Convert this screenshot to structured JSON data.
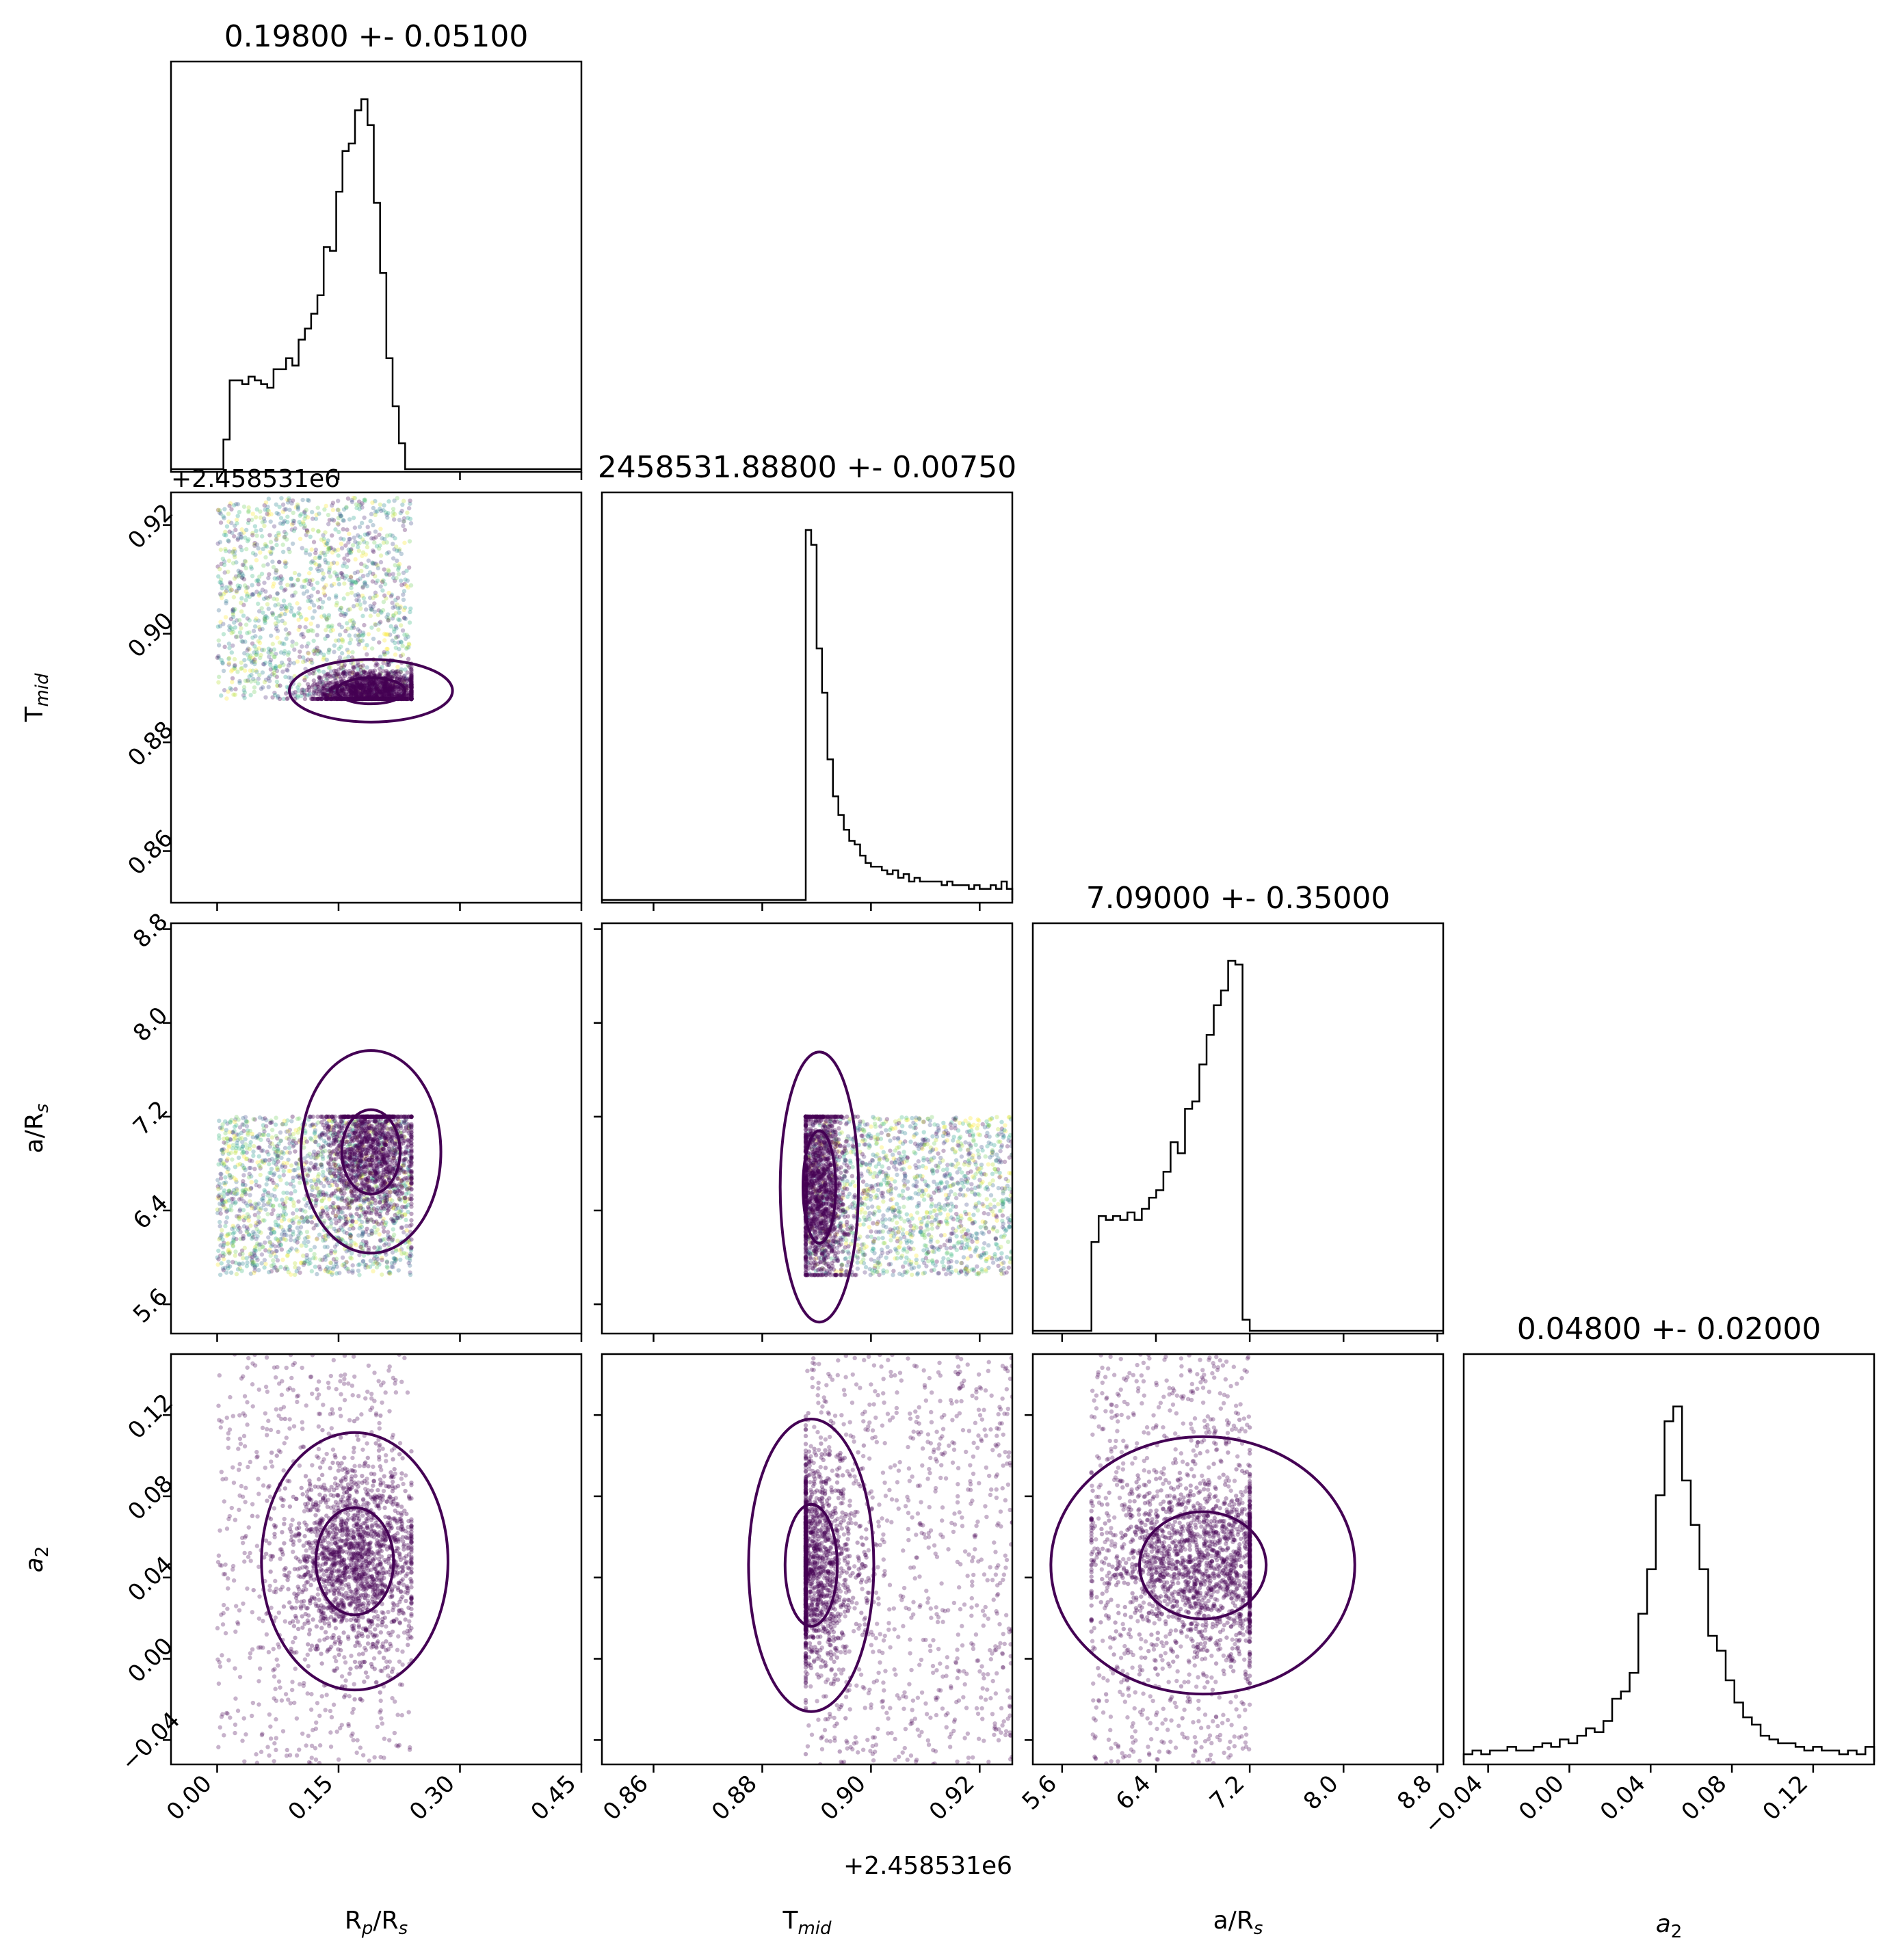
{
  "figure": {
    "type": "corner_plot",
    "parameters": [
      "Rp/Rs",
      "Tmid",
      "a/Rs",
      "a2"
    ]
  },
  "chart_data": {
    "type": "corner",
    "parameters": [
      {
        "key": "rp",
        "label": "Rp/Rs",
        "label_main": "R",
        "label_sub": "p",
        "label_mid": "/R",
        "label_sub2": "s",
        "title": "0.19800 +- 0.05100",
        "range": [
          -0.057,
          0.45
        ],
        "ticks": [
          0.0,
          0.15,
          0.3,
          0.45
        ],
        "tick_labels": [
          "0.00",
          "0.15",
          "0.30",
          "0.45"
        ],
        "offset_label": "",
        "hist": {
          "x_edges_range": [
            0.0,
            0.24
          ],
          "counts": [
            0,
            0.08,
            0.24,
            0.24,
            0.23,
            0.25,
            0.24,
            0.23,
            0.22,
            0.27,
            0.27,
            0.3,
            0.28,
            0.35,
            0.38,
            0.42,
            0.47,
            0.6,
            0.59,
            0.75,
            0.86,
            0.88,
            0.97,
            1.0,
            0.93,
            0.72,
            0.53,
            0.3,
            0.17,
            0.07,
            0.0
          ]
        }
      },
      {
        "key": "tmid",
        "label": "Tmid",
        "label_main": "T",
        "label_sub": "mid",
        "title": "2458531.88800 +- 0.00750",
        "range": [
          0.8505,
          0.926
        ],
        "ticks": [
          0.86,
          0.88,
          0.9,
          0.92
        ],
        "tick_labels": [
          "0.86",
          "0.88",
          "0.90",
          "0.92"
        ],
        "offset_label": "+2.458531e6",
        "hist": {
          "x_edges_range": [
            0.888,
            0.926
          ],
          "counts": [
            1.0,
            0.96,
            0.68,
            0.56,
            0.38,
            0.28,
            0.23,
            0.19,
            0.16,
            0.15,
            0.12,
            0.1,
            0.09,
            0.09,
            0.08,
            0.07,
            0.08,
            0.06,
            0.07,
            0.05,
            0.06,
            0.05,
            0.05,
            0.05,
            0.05,
            0.04,
            0.05,
            0.04,
            0.04,
            0.04,
            0.03,
            0.04,
            0.03,
            0.03,
            0.04,
            0.03,
            0.05,
            0.03
          ]
        }
      },
      {
        "key": "ars",
        "label": "a/Rs",
        "label_main": "a/R",
        "label_sub": "s",
        "title": "7.09000 +- 0.35000",
        "range": [
          5.35,
          8.85
        ],
        "ticks": [
          5.6,
          6.4,
          7.2,
          8.0,
          8.8
        ],
        "tick_labels": [
          "5.6",
          "6.4",
          "7.2",
          "8.0",
          "8.8"
        ],
        "offset_label": "",
        "hist": {
          "x_edges_range": [
            5.85,
            7.2
          ],
          "counts": [
            0.24,
            0.31,
            0.3,
            0.31,
            0.3,
            0.32,
            0.3,
            0.33,
            0.36,
            0.38,
            0.43,
            0.51,
            0.48,
            0.6,
            0.62,
            0.72,
            0.8,
            0.88,
            0.92,
            1.0,
            0.99,
            0.03
          ]
        }
      },
      {
        "key": "a2",
        "label": "a2",
        "label_main": "a",
        "label_sub": "2",
        "title": "0.04800 +- 0.02000",
        "range": [
          -0.052,
          0.15
        ],
        "ticks": [
          -0.04,
          0.0,
          0.04,
          0.08,
          0.12
        ],
        "tick_labels": [
          "−0.04",
          "0.00",
          "0.04",
          "0.08",
          "0.12"
        ],
        "offset_label": "",
        "hist": {
          "x_edges_range": [
            -0.052,
            0.15
          ],
          "counts": [
            0.02,
            0.03,
            0.02,
            0.03,
            0.03,
            0.04,
            0.03,
            0.03,
            0.04,
            0.05,
            0.04,
            0.06,
            0.05,
            0.07,
            0.09,
            0.08,
            0.11,
            0.17,
            0.19,
            0.24,
            0.4,
            0.52,
            0.72,
            0.92,
            0.96,
            0.76,
            0.64,
            0.52,
            0.34,
            0.3,
            0.22,
            0.16,
            0.12,
            0.1,
            0.07,
            0.06,
            0.05,
            0.05,
            0.04,
            0.03,
            0.04,
            0.03,
            0.03,
            0.02,
            0.03,
            0.02,
            0.04
          ]
        }
      }
    ],
    "scatter_color_dominant": "#440154",
    "scatter_colormap": "viridis",
    "contour_color": "#440154",
    "hist_color": "#000000"
  }
}
